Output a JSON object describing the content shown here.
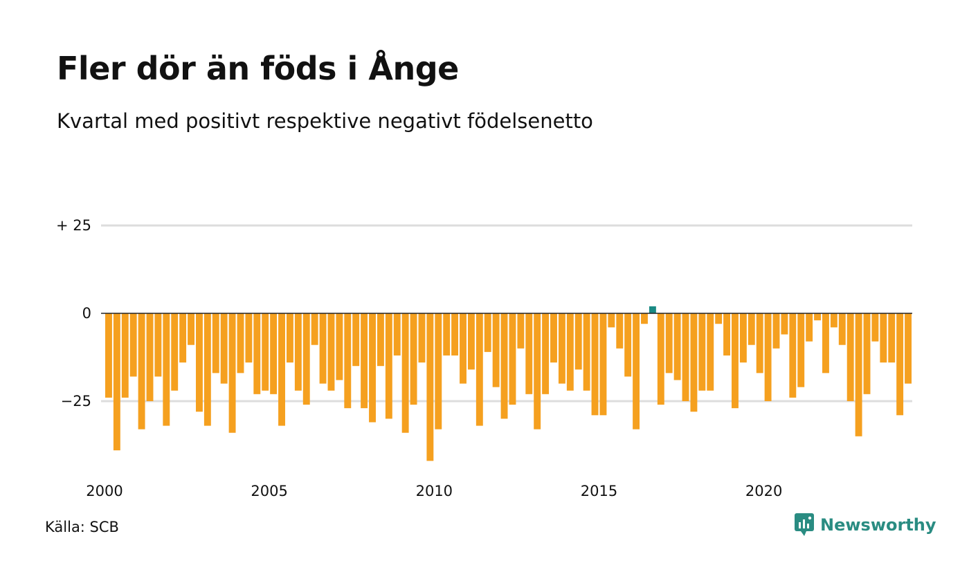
{
  "title": "Fler dör än föds i Ånge",
  "subtitle": "Kvartal med positivt respektive negativt födelsenetto",
  "source": "Källa: SCB",
  "brand": {
    "name": "Newsworthy",
    "icon": "newsworthy-logo-icon"
  },
  "colors": {
    "negative": "#f5a01f",
    "positive": "#1a8a84",
    "grid": "#dddddd",
    "baseline": "#222222"
  },
  "chart_data": {
    "type": "bar",
    "x_start_year": 2000,
    "periods_per_year": 4,
    "y_ticks": [
      {
        "value": 25,
        "label": "+ 25"
      },
      {
        "value": 0,
        "label": "0"
      },
      {
        "value": -25,
        "label": "−25"
      }
    ],
    "x_ticks": [
      {
        "year": 2000,
        "label": "2000"
      },
      {
        "year": 2005,
        "label": "2005"
      },
      {
        "year": 2010,
        "label": "2010"
      },
      {
        "year": 2015,
        "label": "2015"
      },
      {
        "year": 2020,
        "label": "2020"
      }
    ],
    "ylim": [
      -42,
      25
    ],
    "grid": true,
    "values": [
      -24,
      -39,
      -24,
      -18,
      -33,
      -25,
      -18,
      -32,
      -22,
      -14,
      -9,
      -28,
      -32,
      -17,
      -20,
      -34,
      -17,
      -14,
      -23,
      -22,
      -23,
      -32,
      -14,
      -22,
      -26,
      -9,
      -20,
      -22,
      -19,
      -27,
      -15,
      -27,
      -31,
      -15,
      -30,
      -12,
      -34,
      -26,
      -14,
      -42,
      -33,
      -12,
      -12,
      -20,
      -16,
      -32,
      -11,
      -21,
      -30,
      -26,
      -10,
      -23,
      -33,
      -23,
      -14,
      -20,
      -22,
      -16,
      -22,
      -29,
      -29,
      -4,
      -10,
      -18,
      -33,
      -3,
      2,
      -26,
      -17,
      -19,
      -25,
      -28,
      -22,
      -22,
      -3,
      -12,
      -27,
      -14,
      -9,
      -17,
      -25,
      -10,
      -6,
      -24,
      -21,
      -8,
      -2,
      -17,
      -4,
      -9,
      -25,
      -35,
      -23,
      -8,
      -14,
      -14,
      -29,
      -20
    ]
  }
}
